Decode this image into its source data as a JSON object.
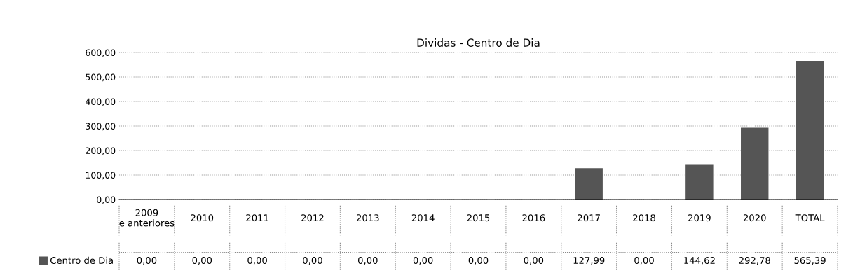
{
  "chart_data": {
    "type": "bar",
    "title": "Dividas - Centro de Dia",
    "categories": [
      "2009 e anteriores",
      "2010",
      "2011",
      "2012",
      "2013",
      "2014",
      "2015",
      "2016",
      "2017",
      "2018",
      "2019",
      "2020",
      "TOTAL"
    ],
    "series": [
      {
        "name": "Centro de Dia",
        "color": "#555555",
        "values": [
          0,
          0,
          0,
          0,
          0,
          0,
          0,
          0,
          127.99,
          0,
          144.62,
          292.78,
          565.39
        ],
        "value_labels": [
          "0,00",
          "0,00",
          "0,00",
          "0,00",
          "0,00",
          "0,00",
          "0,00",
          "0,00",
          "127,99",
          "0,00",
          "144,62",
          "292,78",
          "565,39"
        ]
      }
    ],
    "ylim": [
      0,
      600
    ],
    "yticks": [
      {
        "value": 0,
        "label": "0,00"
      },
      {
        "value": 100,
        "label": "100,00"
      },
      {
        "value": 200,
        "label": "200,00"
      },
      {
        "value": 300,
        "label": "300,00"
      },
      {
        "value": 400,
        "label": "400,00"
      },
      {
        "value": 500,
        "label": "500,00"
      },
      {
        "value": 600,
        "label": "600,00"
      }
    ],
    "grid": "y",
    "legend": "bottom left"
  }
}
